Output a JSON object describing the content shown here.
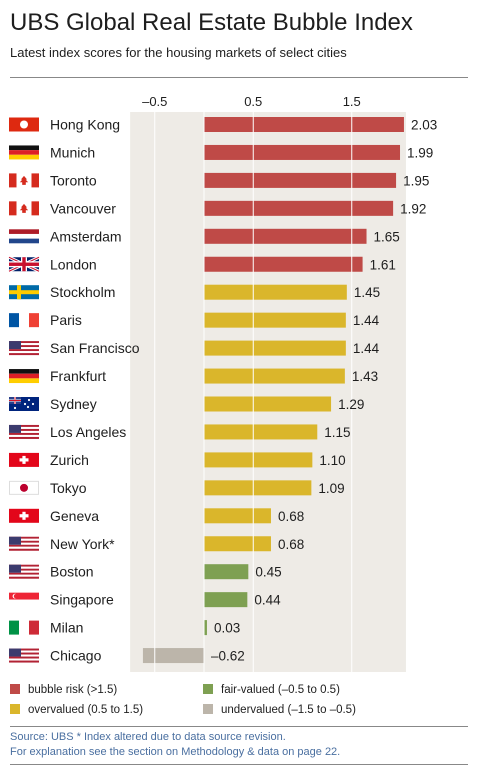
{
  "title": "UBS Global Real Estate Bubble Index",
  "subtitle": "Latest index scores for the housing markets of select cities",
  "colors": {
    "bubble": "#bf4a47",
    "overvalued": "#dab62b",
    "fair": "#7ea052",
    "undervalued": "#bcb5aa"
  },
  "chart_data": {
    "type": "bar",
    "orientation": "horizontal",
    "xlim": [
      -0.75,
      2.03
    ],
    "tick_values": [
      -0.5,
      0.5,
      1.5
    ],
    "tick_labels": [
      "–0.5",
      "0.5",
      "1.5"
    ],
    "grid": true,
    "categories": [
      "Hong Kong",
      "Munich",
      "Toronto",
      "Vancouver",
      "Amsterdam",
      "London",
      "Stockholm",
      "Paris",
      "San Francisco",
      "Frankfurt",
      "Sydney",
      "Los Angeles",
      "Zurich",
      "Tokyo",
      "Geneva",
      "New York*",
      "Boston",
      "Singapore",
      "Milan",
      "Chicago"
    ],
    "values": [
      2.03,
      1.99,
      1.95,
      1.92,
      1.65,
      1.61,
      1.45,
      1.44,
      1.44,
      1.43,
      1.29,
      1.15,
      1.1,
      1.09,
      0.68,
      0.68,
      0.45,
      0.44,
      0.03,
      -0.62
    ],
    "value_labels": [
      "2.03",
      "1.99",
      "1.95",
      "1.92",
      "1.65",
      "1.61",
      "1.45",
      "1.44",
      "1.44",
      "1.43",
      "1.29",
      "1.15",
      "1.10",
      "1.09",
      "0.68",
      "0.68",
      "0.45",
      "0.44",
      "0.03",
      "–0.62"
    ],
    "flags": [
      "hong-kong",
      "germany",
      "canada",
      "canada",
      "netherlands",
      "united-kingdom",
      "sweden",
      "france",
      "united-states",
      "germany",
      "australia",
      "united-states",
      "switzerland",
      "japan",
      "switzerland",
      "united-states",
      "united-states",
      "singapore",
      "italy",
      "united-states"
    ],
    "legend": [
      {
        "label": "bubble risk (>1.5)",
        "key": "bubble"
      },
      {
        "label": "fair-valued (–0.5 to 0.5)",
        "key": "fair"
      },
      {
        "label": "overvalued (0.5 to 1.5)",
        "key": "overvalued"
      },
      {
        "label": "undervalued (–1.5 to –0.5)",
        "key": "undervalued"
      }
    ]
  },
  "source": "Source: UBS  * Index altered due to data source revision.",
  "note": "For explanation see the section on Methodology & data on page 22."
}
